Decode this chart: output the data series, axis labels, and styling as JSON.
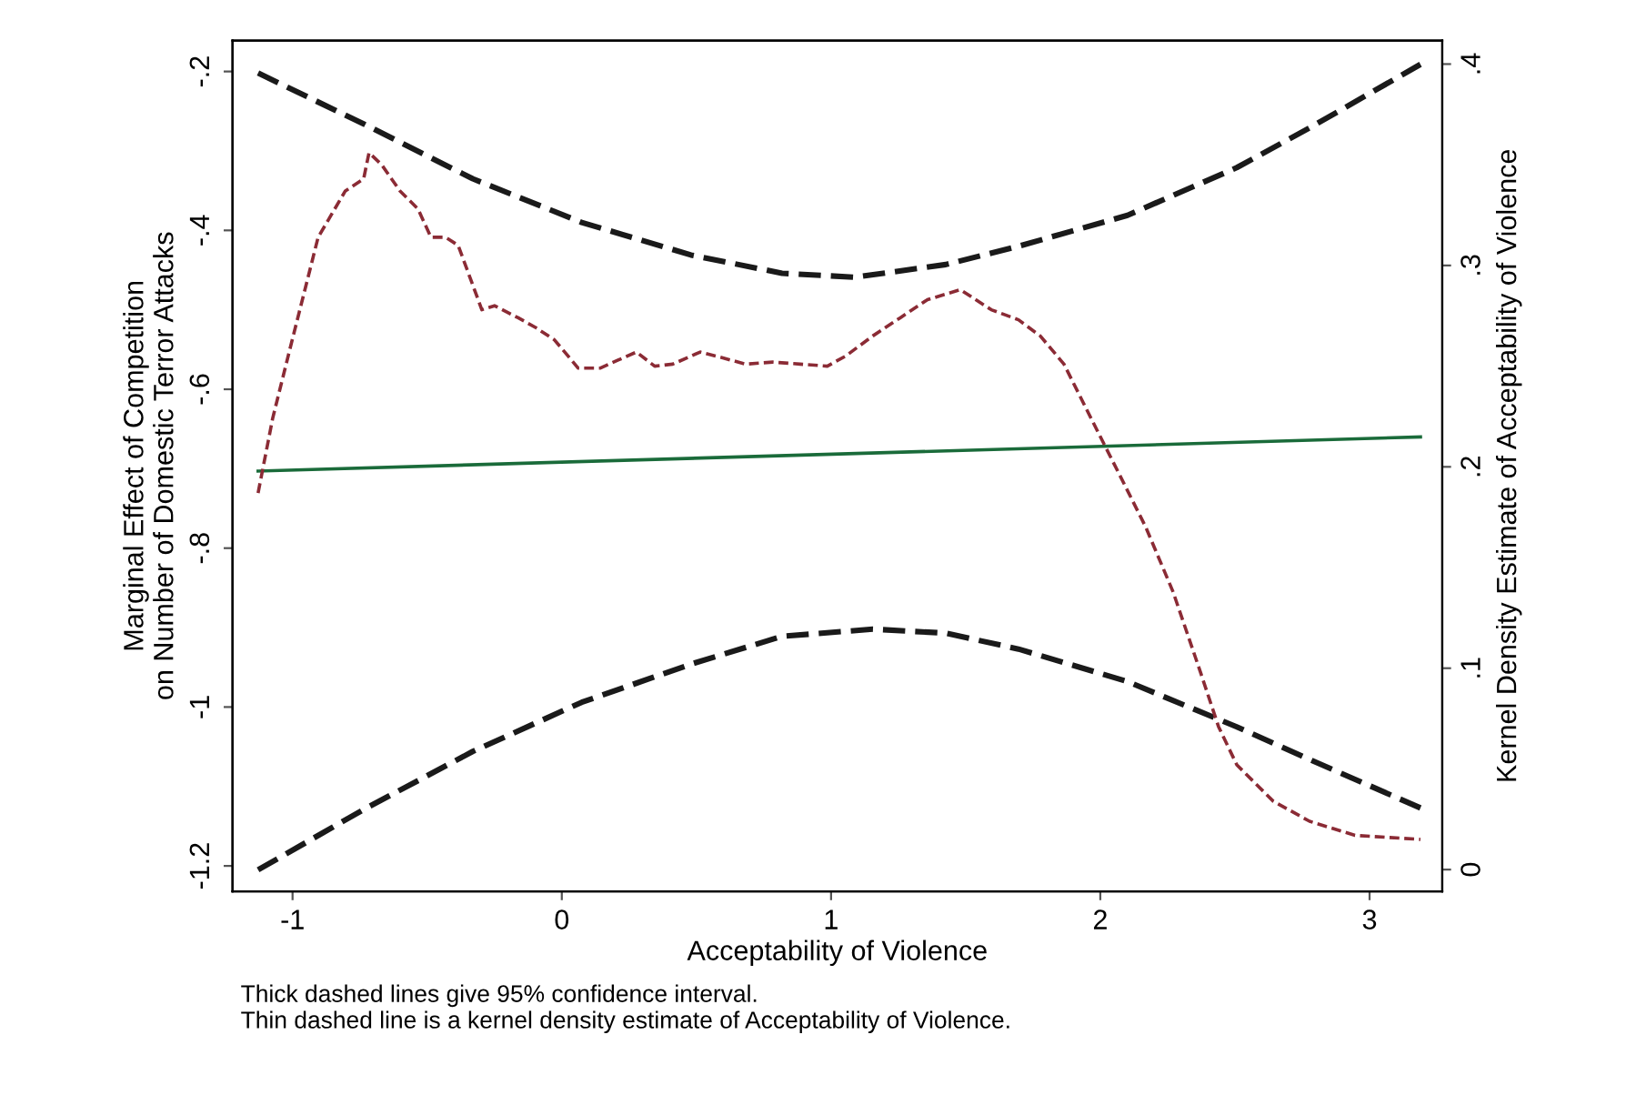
{
  "chart_data": {
    "type": "line",
    "xlabel": "Acceptability of Violence",
    "ylabel": "Marginal Effect of Competition\non Number of Domestic Terror Attacks",
    "y2label": "Kernel Density Estimate of Acceptability of Violence",
    "annotations": [
      "Thick dashed lines give 95% confidence interval.",
      "Thin dashed line is a kernel density estimate of Acceptability of Violence."
    ],
    "xlim": [
      -1.223,
      3.27
    ],
    "xticks": [
      -1,
      0,
      1,
      2,
      3
    ],
    "ylim": [
      -1.232,
      -0.161
    ],
    "yticks": [
      {
        "value": -1.2,
        "label": "-1.2"
      },
      {
        "value": -1,
        "label": "-1"
      },
      {
        "value": -0.8,
        "label": "-.8"
      },
      {
        "value": -0.6,
        "label": "-.6"
      },
      {
        "value": -0.4,
        "label": "-.4"
      },
      {
        "value": -0.2,
        "label": "-.2"
      }
    ],
    "y2lim": [
      -0.0108,
      0.4117
    ],
    "y2ticks": [
      0,
      {
        "value": 0.1,
        "label": ".1"
      },
      {
        "value": 0.2,
        "label": ".2"
      },
      {
        "value": 0.3,
        "label": ".3"
      },
      {
        "value": 0.4,
        "label": ".4"
      }
    ],
    "grid": false,
    "legend": false,
    "series": [
      {
        "color": "#1a6b3a",
        "line_style": "solid",
        "x": [
          -1.128,
          3.189
        ],
        "values": [
          -0.703,
          -0.66
        ]
      },
      {
        "color": "#1a1a1a",
        "line_style": "dashed",
        "x": [
          -1.128,
          -0.736,
          -0.331,
          0.074,
          0.48,
          0.818,
          1.088,
          1.426,
          1.696,
          2.101,
          2.507,
          2.777,
          3.189
        ],
        "values": [
          -0.202,
          -0.266,
          -0.335,
          -0.39,
          -0.431,
          -0.454,
          -0.459,
          -0.443,
          -0.42,
          -0.381,
          -0.321,
          -0.271,
          -0.191
        ]
      },
      {
        "color": "#1a1a1a",
        "line_style": "dashed",
        "x": [
          -1.128,
          -0.736,
          -0.331,
          0.074,
          0.48,
          0.818,
          1.155,
          1.426,
          1.696,
          2.101,
          2.507,
          2.777,
          3.189
        ],
        "values": [
          -1.205,
          -1.129,
          -1.056,
          -0.994,
          -0.946,
          -0.911,
          -0.902,
          -0.907,
          -0.927,
          -0.968,
          -1.025,
          -1.066,
          -1.127
        ]
      },
      {
        "color": "#8b2b35",
        "line_style": "dashed",
        "axis": "y2",
        "x": [
          -1.128,
          -1.074,
          -1.007,
          -0.905,
          -0.804,
          -0.736,
          -0.716,
          -0.669,
          -0.601,
          -0.534,
          -0.486,
          -0.432,
          -0.385,
          -0.297,
          -0.25,
          -0.162,
          -0.095,
          -0.027,
          0.061,
          0.142,
          0.209,
          0.277,
          0.345,
          0.412,
          0.514,
          0.601,
          0.682,
          0.784,
          0.885,
          0.986,
          1.054,
          1.155,
          1.257,
          1.358,
          1.48,
          1.595,
          1.696,
          1.777,
          1.865,
          1.966,
          2.068,
          2.169,
          2.27,
          2.372,
          2.439,
          2.507,
          2.642,
          2.777,
          2.946,
          3.189
        ],
        "values": [
          0.187,
          0.224,
          0.26,
          0.314,
          0.337,
          0.343,
          0.356,
          0.35,
          0.337,
          0.328,
          0.314,
          0.314,
          0.31,
          0.278,
          0.28,
          0.274,
          0.269,
          0.263,
          0.249,
          0.249,
          0.253,
          0.257,
          0.25,
          0.251,
          0.257,
          0.254,
          0.251,
          0.252,
          0.251,
          0.25,
          0.255,
          0.265,
          0.274,
          0.283,
          0.288,
          0.278,
          0.273,
          0.265,
          0.251,
          0.224,
          0.197,
          0.17,
          0.138,
          0.098,
          0.071,
          0.052,
          0.034,
          0.024,
          0.017,
          0.015
        ]
      }
    ]
  }
}
